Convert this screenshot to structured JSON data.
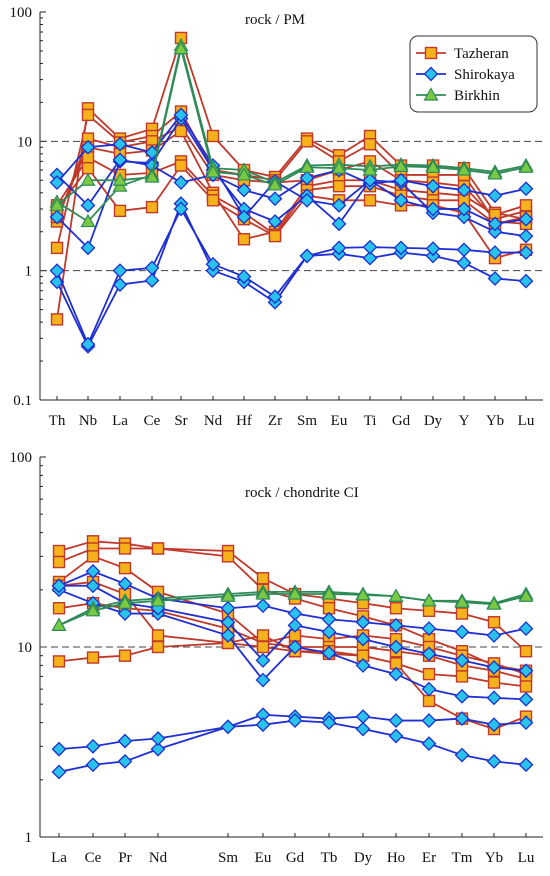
{
  "chart_data": [
    {
      "type": "line",
      "title": "rock / PM",
      "scale": "log",
      "ylim": [
        0.1,
        100
      ],
      "yticks": [
        "0.1",
        "1",
        "10",
        "100"
      ],
      "reference_lines": [
        1,
        10
      ],
      "categories": [
        "Th",
        "Nb",
        "La",
        "Ce",
        "Sr",
        "Nd",
        "Hf",
        "Zr",
        "Sm",
        "Eu",
        "Ti",
        "Gd",
        "Dy",
        "Y",
        "Yb",
        "Lu"
      ],
      "legend": {
        "position": "top-right",
        "entries": [
          {
            "name": "Tazheran",
            "color": "#f5b21b",
            "stroke": "#c0392b",
            "marker": "square"
          },
          {
            "name": "Shirokaya",
            "color": "#29c2ea",
            "stroke": "#1f2fd1",
            "marker": "diamond"
          },
          {
            "name": "Birkhin",
            "color": "#7ac943",
            "stroke": "#2e8b57",
            "marker": "triangle"
          }
        ]
      },
      "series": [
        {
          "group": "Tazheran",
          "values": [
            0.42,
            18,
            10.5,
            12.5,
            63,
            11,
            6,
            5.3,
            10.5,
            7.8,
            11,
            6.5,
            6.5,
            6.2,
            2.8,
            2.5
          ]
        },
        {
          "group": "Tazheran",
          "values": [
            1.5,
            16,
            9.8,
            11,
            17,
            6,
            5.5,
            5,
            10,
            7,
            9.5,
            5.5,
            5.5,
            5.5,
            2.4,
            2.3
          ]
        },
        {
          "group": "Tazheran",
          "values": [
            2.4,
            10.5,
            9,
            10,
            13,
            5.5,
            5,
            4.8,
            5,
            6,
            7,
            5,
            4.8,
            4.5,
            2.5,
            2.9
          ]
        },
        {
          "group": "Tazheran",
          "values": [
            2.6,
            9,
            8,
            8.5,
            12,
            4,
            1.75,
            2.0,
            4.5,
            5,
            5,
            4.2,
            4,
            3.8,
            2.7,
            3.2
          ]
        },
        {
          "group": "Tazheran",
          "values": [
            3.2,
            7.5,
            5.5,
            5.7,
            7,
            3.8,
            2.8,
            1.9,
            4.2,
            4.5,
            4.5,
            3.8,
            3.5,
            3.5,
            2.3,
            2.6
          ]
        },
        {
          "group": "Tazheran",
          "values": [
            3.0,
            6.2,
            2.9,
            3.1,
            6.5,
            3.5,
            2.5,
            1.85,
            3.8,
            3.5,
            3.5,
            3.2,
            3.2,
            2.8,
            1.25,
            1.45
          ]
        },
        {
          "group": "Shirokaya",
          "values": [
            0.82,
            0.26,
            0.78,
            0.84,
            3.3,
            1.0,
            0.82,
            0.57,
            1.3,
            1.35,
            1.25,
            1.38,
            1.3,
            1.15,
            0.87,
            0.83
          ]
        },
        {
          "group": "Shirokaya",
          "values": [
            1.0,
            0.27,
            1.0,
            1.05,
            3.0,
            1.12,
            0.9,
            0.63,
            1.3,
            1.5,
            1.52,
            1.5,
            1.48,
            1.45,
            1.38,
            1.38
          ]
        },
        {
          "group": "Shirokaya",
          "values": [
            2.6,
            1.5,
            7,
            6.8,
            15,
            6,
            3,
            2.4,
            3.8,
            2.3,
            5,
            4.8,
            2.8,
            2.6,
            2.0,
            1.85
          ]
        },
        {
          "group": "Shirokaya",
          "values": [
            5.5,
            3.2,
            7.2,
            6.5,
            4.8,
            5.5,
            4.2,
            3.6,
            5.2,
            6.0,
            4.7,
            5.0,
            4.5,
            4.2,
            3.8,
            4.3
          ]
        },
        {
          "group": "Shirokaya",
          "values": [
            4.8,
            9,
            9.5,
            8.2,
            16,
            6.5,
            2.6,
            4.9,
            3.5,
            3.2,
            5,
            3.5,
            3.0,
            3.0,
            2.3,
            2.5
          ]
        },
        {
          "group": "Birkhin",
          "values": [
            3.4,
            2.4,
            4.5,
            5.5,
            55,
            6.2,
            6.0,
            4.8,
            6.5,
            6.6,
            6.4,
            6.6,
            6.5,
            6.2,
            5.8,
            6.5
          ]
        },
        {
          "group": "Birkhin",
          "values": [
            3.2,
            5,
            5,
            5.3,
            52,
            5.8,
            5.5,
            4.6,
            6.3,
            6.2,
            6.0,
            6.4,
            6.3,
            6.0,
            5.6,
            6.3
          ]
        }
      ]
    },
    {
      "type": "line",
      "title": "rock / chondrite CI",
      "scale": "log",
      "ylim": [
        1,
        100
      ],
      "yticks": [
        "1",
        "10",
        "100"
      ],
      "reference_lines": [
        10
      ],
      "categories": [
        "La",
        "Ce",
        "Pr",
        "Nd",
        "Sm",
        "Eu",
        "Gd",
        "Tb",
        "Dy",
        "Ho",
        "Er",
        "Tm",
        "Yb",
        "Lu"
      ],
      "series": [
        {
          "group": "Tazheran",
          "values": [
            32,
            36,
            35,
            33,
            32,
            23,
            19,
            18,
            17,
            16,
            15.5,
            15,
            13.5,
            9.5
          ]
        },
        {
          "group": "Tazheran",
          "values": [
            28,
            33,
            33,
            33,
            30,
            20,
            18,
            16,
            14.5,
            13,
            11,
            9.5,
            8,
            7.5
          ]
        },
        {
          "group": "Tazheran",
          "values": [
            22,
            30,
            26,
            19.5,
            15,
            10.5,
            11.5,
            11,
            11.5,
            11,
            10,
            9,
            8.2,
            7.2
          ]
        },
        {
          "group": "Tazheran",
          "values": [
            16,
            17,
            16,
            15.5,
            12.5,
            10.5,
            10,
            10,
            10,
            9.5,
            9,
            8,
            7.5,
            6.8
          ]
        },
        {
          "group": "Tazheran",
          "values": [
            21,
            22,
            19,
            11.5,
            10.5,
            10,
            9.5,
            9.2,
            9,
            8.2,
            7.2,
            7,
            6.5,
            6.2
          ]
        },
        {
          "group": "Tazheran",
          "values": [
            8.4,
            8.8,
            9,
            10,
            10.5,
            11.5,
            9.5,
            9.5,
            9,
            8.2,
            5.2,
            4.2,
            3.7,
            4.3
          ]
        },
        {
          "group": "Shirokaya",
          "values": [
            2.2,
            2.4,
            2.5,
            2.9,
            3.8,
            4.4,
            4.3,
            4.2,
            4.3,
            4.1,
            4.1,
            4.2,
            3.9,
            4.0
          ]
        },
        {
          "group": "Shirokaya",
          "values": [
            2.9,
            3.0,
            3.2,
            3.3,
            3.8,
            3.9,
            4.1,
            4.0,
            3.7,
            3.4,
            3.1,
            2.7,
            2.5,
            2.4
          ]
        },
        {
          "group": "Shirokaya",
          "values": [
            21,
            25,
            21.5,
            18,
            16,
            16.5,
            15,
            14,
            13.5,
            13,
            12.5,
            12,
            11.5,
            12.5
          ]
        },
        {
          "group": "Shirokaya",
          "values": [
            20,
            17,
            15,
            15,
            11.5,
            6.7,
            10,
            9.3,
            8,
            7.2,
            6,
            5.5,
            5.4,
            5.3
          ]
        },
        {
          "group": "Shirokaya",
          "values": [
            21,
            21,
            17,
            16,
            13.5,
            8.5,
            13,
            12,
            11,
            10,
            9.2,
            8.5,
            7.8,
            7.5
          ]
        },
        {
          "group": "Birkhin",
          "values": [
            13,
            16,
            17.5,
            18,
            19,
            19.5,
            19.5,
            19.5,
            19,
            18.5,
            17.5,
            17.5,
            17,
            19
          ]
        },
        {
          "group": "Birkhin",
          "values": [
            13,
            15.5,
            17,
            17.5,
            18.5,
            19,
            19,
            19,
            18.8,
            18.5,
            17.5,
            17.2,
            16.8,
            18.5
          ]
        }
      ]
    }
  ]
}
